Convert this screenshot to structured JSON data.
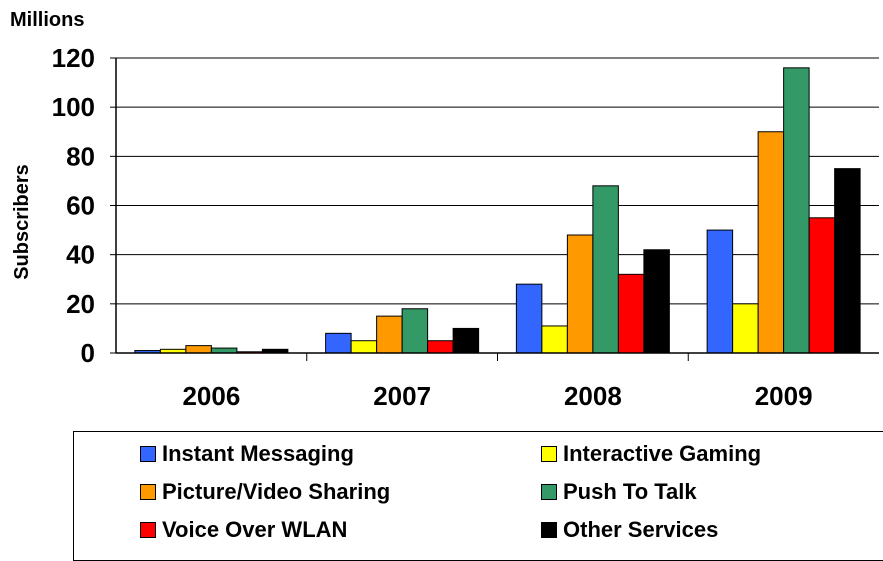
{
  "chart_data": {
    "type": "bar",
    "unit_label": "Millions",
    "ylabel": "Subscribers",
    "xlabel": "",
    "title": "",
    "ylim": [
      0,
      120
    ],
    "yticks": [
      0,
      20,
      40,
      60,
      80,
      100,
      120
    ],
    "grid": true,
    "legend_position": "bottom",
    "categories": [
      "2006",
      "2007",
      "2008",
      "2009"
    ],
    "series": [
      {
        "name": "Instant Messaging",
        "color": "#3366ff",
        "values": [
          1,
          8,
          28,
          50
        ]
      },
      {
        "name": "Interactive Gaming",
        "color": "#ffff00",
        "values": [
          1.5,
          5,
          11,
          20
        ]
      },
      {
        "name": "Picture/Video Sharing",
        "color": "#ff9900",
        "values": [
          3,
          15,
          48,
          90
        ]
      },
      {
        "name": "Push To Talk",
        "color": "#339966",
        "values": [
          2,
          18,
          68,
          116
        ]
      },
      {
        "name": "Voice Over WLAN",
        "color": "#ff0000",
        "values": [
          0.5,
          5,
          32,
          55
        ]
      },
      {
        "name": "Other Services",
        "color": "#000000",
        "values": [
          1.5,
          10,
          42,
          75
        ]
      }
    ]
  }
}
